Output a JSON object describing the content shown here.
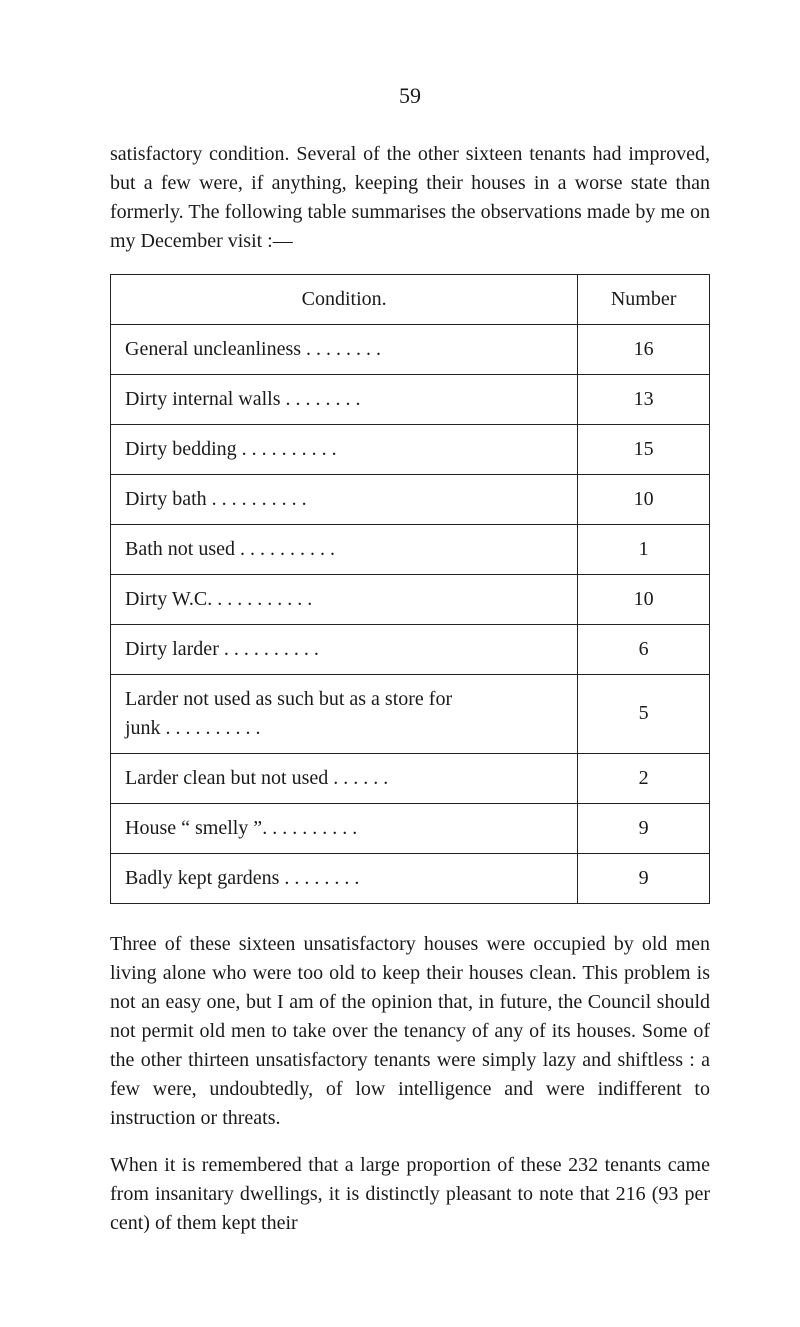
{
  "page_number": "59",
  "paragraphs": {
    "p1": "satisfactory condition. Several of the other sixteen tenants had improved, but a few were, if anything, keeping their houses in a worse state than formerly. The following table summarises the observations made by me on my December visit :—",
    "p2": "Three of these sixteen unsatisfactory houses were oc­cupied by old men living alone who were too old to keep their houses clean. This problem is not an easy one, but I am of the opinion that, in future, the Council should not permit old men to take over the tenancy of any of its houses. Some of the other thirteen unsatisfactory tenants were simply lazy and shiftless : a few were, undoubtedly, of low intelligence and were indifferent to instruction or threats.",
    "p3": "When it is remembered that a large proportion of these 232 tenants came from insanitary dwellings, it is distinctly pleasant to note that 216 (93 per cent) of them kept their"
  },
  "table": {
    "header_condition": "Condition.",
    "header_number": "Number",
    "rows": [
      {
        "condition": "General uncleanliness    . .        . .        . .        . .",
        "number": "16"
      },
      {
        "condition": "Dirty internal walls        . .        . .        . .        . .",
        "number": "13"
      },
      {
        "condition": "Dirty bedding      . .        . .        . .        . .        . .",
        "number": "15"
      },
      {
        "condition": "Dirty bath             . .        . .        . .        . .        . .",
        "number": "10"
      },
      {
        "condition": "Bath not used      . .        . .        . .        . .        . .",
        "number": "1"
      },
      {
        "condition": "Dirty W.C.            . .        . .        . .        . .        . .",
        "number": "10"
      },
      {
        "condition": "Dirty larder          . .        . .        . .        . .        . .",
        "number": "6"
      },
      {
        "condition": "Larder not used as such but as a store for\n  junk                  . .        . .        . .        . .        . .",
        "number": "5"
      },
      {
        "condition": "Larder clean but not used          . .        . .        . .",
        "number": "2"
      },
      {
        "condition": "House “ smelly ”. .        . .        . .        . .        . .",
        "number": "9"
      },
      {
        "condition": "Badly kept gardens        . .        . .        . .        . .",
        "number": "9"
      }
    ]
  }
}
